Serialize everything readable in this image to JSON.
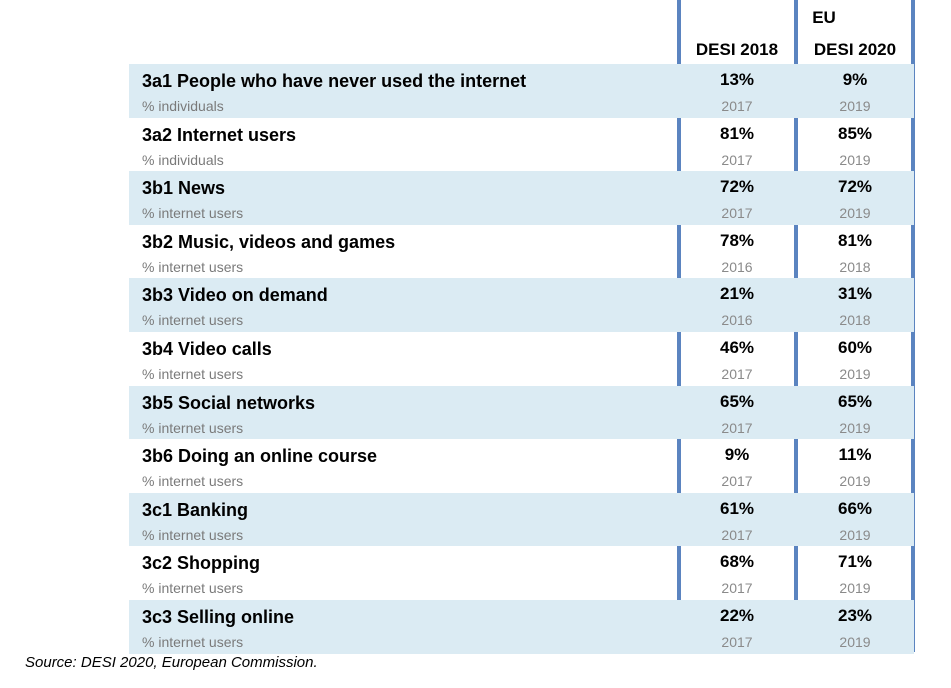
{
  "header": {
    "group_label": "EU",
    "col1": "DESI 2018",
    "col2": "DESI 2020"
  },
  "rows": [
    {
      "name": "3a1 People who have never used the internet",
      "unit": "% individuals",
      "v2018": "13%",
      "y2018": "2017",
      "v2020": "9%",
      "y2020": "2019"
    },
    {
      "name": "3a2 Internet users",
      "unit": "% individuals",
      "v2018": "81%",
      "y2018": "2017",
      "v2020": "85%",
      "y2020": "2019"
    },
    {
      "name": "3b1 News",
      "unit": "% internet users",
      "v2018": "72%",
      "y2018": "2017",
      "v2020": "72%",
      "y2020": "2019"
    },
    {
      "name": "3b2 Music, videos and games",
      "unit": "% internet users",
      "v2018": "78%",
      "y2018": "2016",
      "v2020": "81%",
      "y2020": "2018"
    },
    {
      "name": "3b3 Video on demand",
      "unit": "% internet users",
      "v2018": "21%",
      "y2018": "2016",
      "v2020": "31%",
      "y2020": "2018"
    },
    {
      "name": "3b4 Video calls",
      "unit": "% internet users",
      "v2018": "46%",
      "y2018": "2017",
      "v2020": "60%",
      "y2020": "2019"
    },
    {
      "name": "3b5 Social networks",
      "unit": "% internet users",
      "v2018": "65%",
      "y2018": "2017",
      "v2020": "65%",
      "y2020": "2019"
    },
    {
      "name": "3b6 Doing an online course",
      "unit": "% internet users",
      "v2018": "9%",
      "y2018": "2017",
      "v2020": "11%",
      "y2020": "2019"
    },
    {
      "name": "3c1 Banking",
      "unit": "% internet users",
      "v2018": "61%",
      "y2018": "2017",
      "v2020": "66%",
      "y2020": "2019"
    },
    {
      "name": "3c2 Shopping",
      "unit": "% internet users",
      "v2018": "68%",
      "y2018": "2017",
      "v2020": "71%",
      "y2020": "2019"
    },
    {
      "name": "3c3 Selling online",
      "unit": "% internet users",
      "v2018": "22%",
      "y2018": "2017",
      "v2020": "23%",
      "y2020": "2019"
    }
  ],
  "footer": {
    "source": "Source: DESI 2020, European Commission."
  },
  "colors": {
    "shaded_row": "#dbebf3",
    "divider": "#5b84c0"
  }
}
